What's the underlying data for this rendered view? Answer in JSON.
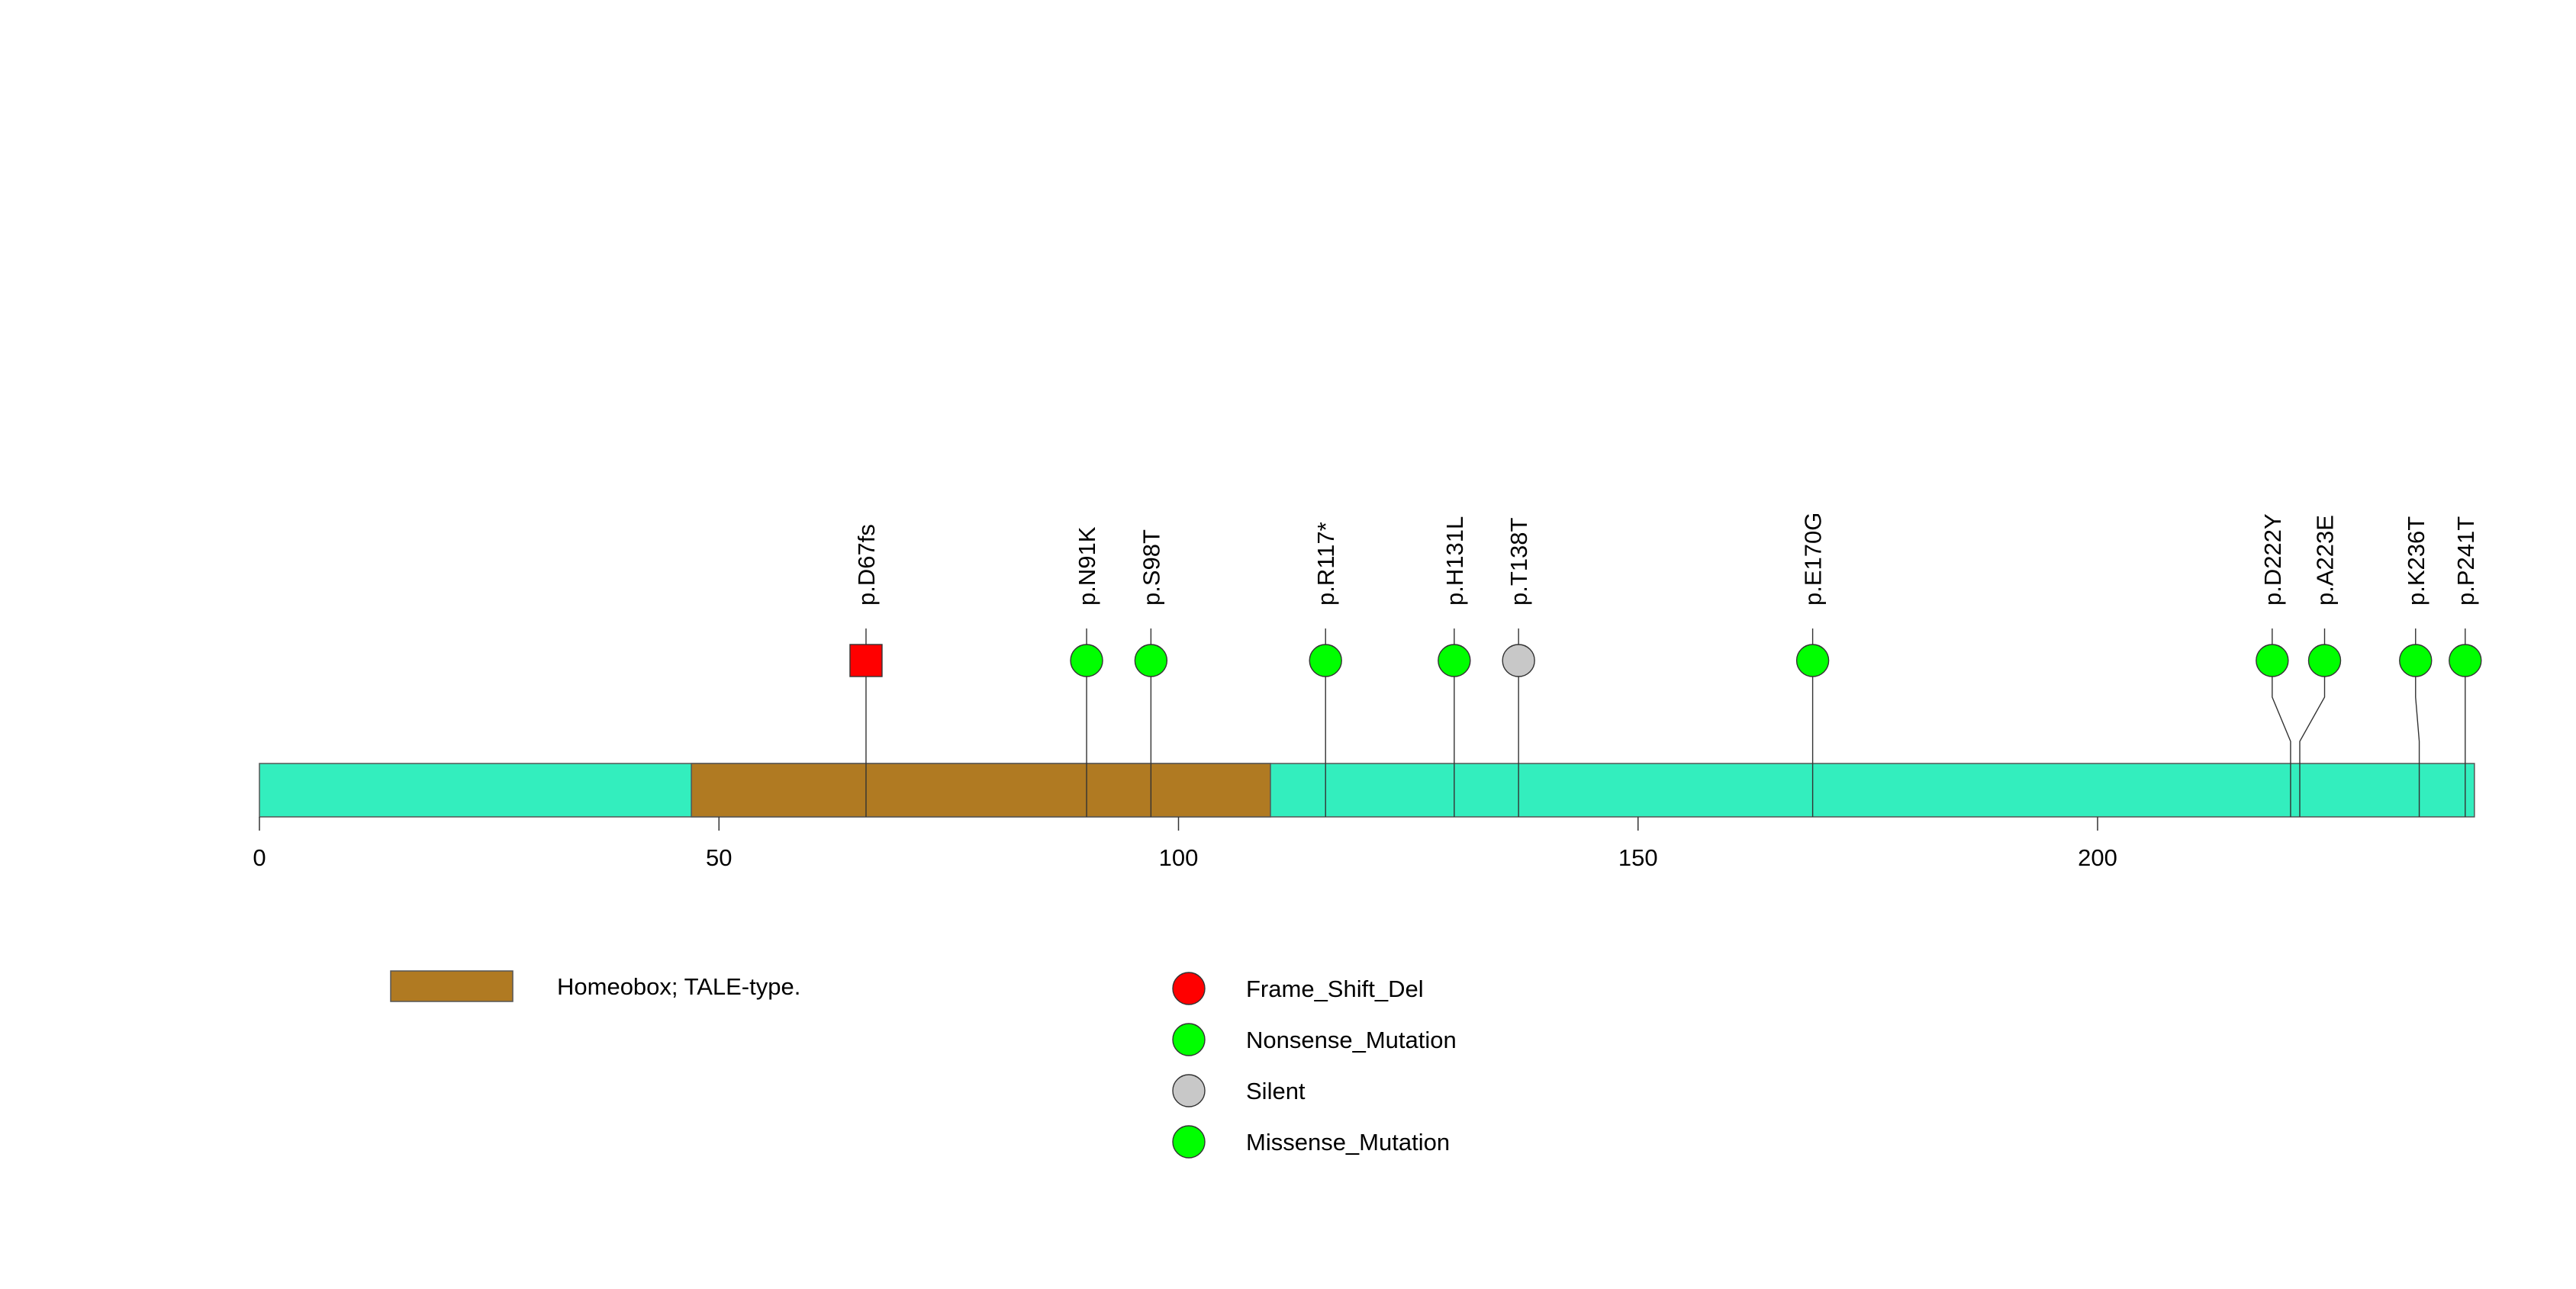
{
  "chart_data": {
    "type": "lollipop",
    "protein_length": 241,
    "x_axis": {
      "range": [
        0,
        241
      ],
      "ticks": [
        0,
        50,
        100,
        150,
        200
      ],
      "tick_labels": [
        "0",
        "50",
        "100",
        "150",
        "200"
      ]
    },
    "backbone_color": "#33eebe",
    "domains": [
      {
        "name": "Homeobox; TALE-type.",
        "start": 47,
        "end": 110,
        "color": "#b07a22"
      }
    ],
    "mutations": [
      {
        "label": "p.D67fs",
        "position": 66,
        "draw_at": 66,
        "type": "Frame_Shift_Del",
        "shape": "square"
      },
      {
        "label": "p.N91K",
        "position": 90,
        "draw_at": 90,
        "type": "Missense_Mutation",
        "shape": "circle"
      },
      {
        "label": "p.S98T",
        "position": 97,
        "draw_at": 97,
        "type": "Missense_Mutation",
        "shape": "circle"
      },
      {
        "label": "p.R117*",
        "position": 116,
        "draw_at": 116,
        "type": "Nonsense_Mutation",
        "shape": "circle"
      },
      {
        "label": "p.H131L",
        "position": 130,
        "draw_at": 130,
        "type": "Missense_Mutation",
        "shape": "circle"
      },
      {
        "label": "p.T138T",
        "position": 137,
        "draw_at": 137,
        "type": "Silent",
        "shape": "circle"
      },
      {
        "label": "p.E170G",
        "position": 169,
        "draw_at": 169,
        "type": "Missense_Mutation",
        "shape": "circle"
      },
      {
        "label": "p.D222Y",
        "position": 221,
        "draw_at": 219,
        "type": "Missense_Mutation",
        "shape": "circle"
      },
      {
        "label": "p.A223E",
        "position": 222,
        "draw_at": 224.7,
        "type": "Missense_Mutation",
        "shape": "circle"
      },
      {
        "label": "p.K236T",
        "position": 235,
        "draw_at": 234.6,
        "type": "Missense_Mutation",
        "shape": "circle"
      },
      {
        "label": "p.P241T",
        "position": 240,
        "draw_at": 240,
        "type": "Missense_Mutation",
        "shape": "circle"
      }
    ],
    "colors": {
      "Frame_Shift_Del": "#ff0000",
      "Nonsense_Mutation": "#00ff00",
      "Silent": "#c8c8c8",
      "Missense_Mutation": "#00ff00"
    },
    "legend": {
      "domains": [
        {
          "name": "Homeobox; TALE-type.",
          "color": "#b07a22"
        }
      ],
      "mutation_types": [
        {
          "name": "Frame_Shift_Del",
          "color": "#ff0000"
        },
        {
          "name": "Nonsense_Mutation",
          "color": "#00ff00"
        },
        {
          "name": "Silent",
          "color": "#c8c8c8"
        },
        {
          "name": "Missense_Mutation",
          "color": "#00ff00"
        }
      ]
    }
  }
}
